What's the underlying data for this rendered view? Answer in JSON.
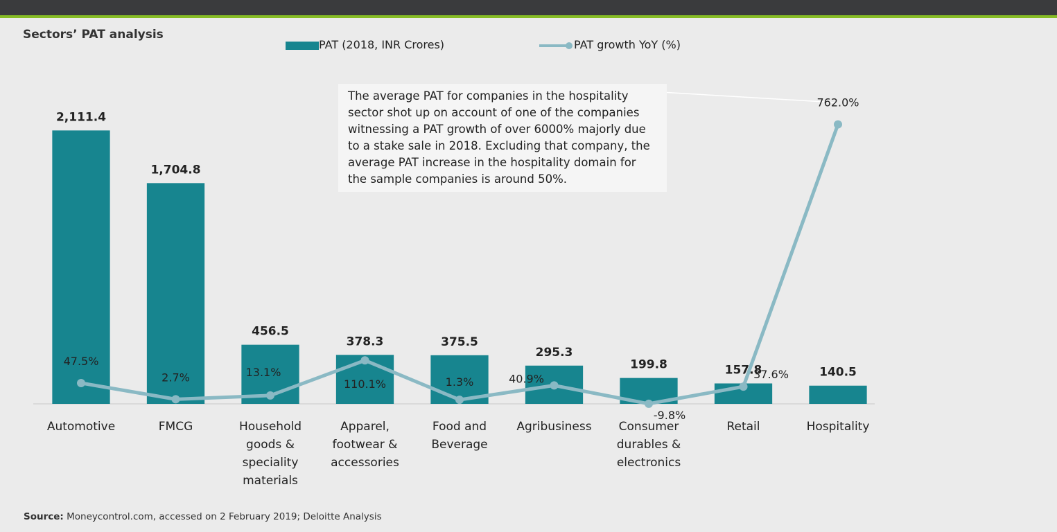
{
  "chart_data": {
    "type": "bar_line",
    "title": "Sectors’ PAT analysis",
    "categories": [
      "Automotive",
      "FMCG",
      "Household goods & speciality materials",
      "Apparel, footwear & accessories",
      "Food and Beverage",
      "Agribusiness",
      "Consumer durables & electronics",
      "Retail",
      "Hospitality"
    ],
    "series": [
      {
        "name": "PAT (2018, INR Crores)",
        "color": "#17858f",
        "kind": "bar",
        "values": [
          2111.4,
          1704.8,
          456.5,
          378.3,
          375.5,
          295.3,
          199.8,
          157.8,
          140.5
        ],
        "value_labels": [
          "2,111.4",
          "1,704.8",
          "456.5",
          "378.3",
          "375.5",
          "295.3",
          "199.8",
          "157.8",
          "140.5"
        ]
      },
      {
        "name": "PAT growth YoY (%)",
        "color": "#8ab9c4",
        "kind": "line",
        "axis": "y2",
        "values": [
          47.5,
          2.7,
          13.1,
          110.1,
          1.3,
          40.9,
          -9.8,
          37.6,
          762.0
        ],
        "value_labels": [
          "47.5%",
          "2.7%",
          "13.1%",
          "110.1%",
          "1.3%",
          "40.9%",
          "-9.8%",
          "37.6%",
          "762.0%"
        ]
      }
    ],
    "ylim": [
      0,
      2600
    ],
    "y2lim": [
      -10,
      920
    ],
    "annotation": "The average PAT for companies in the hospitality sector shot up on account of one of the companies witnessing a PAT growth of over 6000% majorly due to a stake sale in 2018. Excluding that company, the average PAT increase in the hospitality domain for the sample companies is around 50%.",
    "source_label": "Source:",
    "source_text": "Moneycontrol.com, accessed on 2 February 2019; Deloitte Analysis"
  }
}
